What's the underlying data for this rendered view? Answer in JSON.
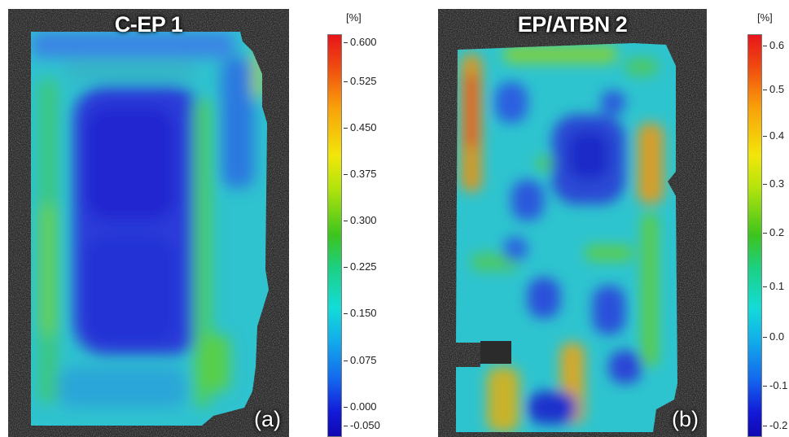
{
  "panels": [
    {
      "title": "C-EP 1",
      "tag": "(a)"
    },
    {
      "title": "EP/ATBN 2",
      "tag": "(b)"
    }
  ],
  "colorbars": [
    {
      "unit": "[%]",
      "ticks": [
        "0.600",
        "0.525",
        "0.450",
        "0.375",
        "0.300",
        "0.225",
        "0.150",
        "0.075",
        "0.000",
        "-0.050"
      ]
    },
    {
      "unit": "[%]",
      "ticks": [
        "0.6",
        "0.5",
        "0.4",
        "0.3",
        "0.2",
        "0.1",
        "0.0",
        "-0.1",
        "-0.2"
      ]
    }
  ],
  "colors": {
    "background_speckle": "#2a2a2a",
    "strain_high": "#e8141a",
    "strain_mid": "#3cc41e",
    "strain_low": "#121ad8",
    "text": "#222222"
  }
}
